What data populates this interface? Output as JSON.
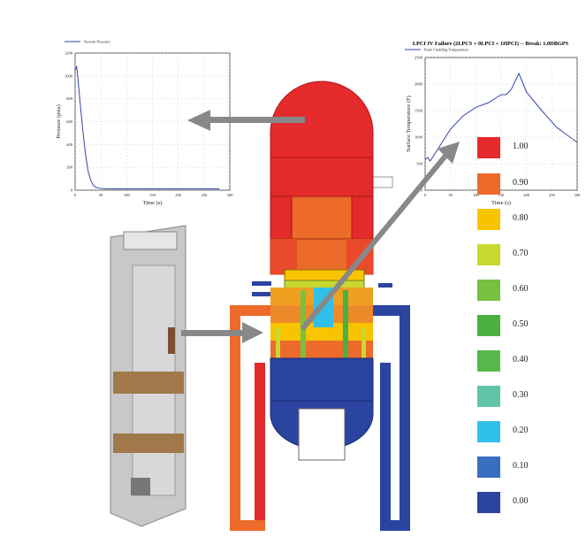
{
  "chart_data": [
    {
      "type": "line",
      "title": "",
      "xlabel": "Time   (s)",
      "ylabel": "Pressure   (psia)",
      "xlim": [
        0,
        300
      ],
      "ylim": [
        0,
        1200
      ],
      "x_ticks": [
        "0",
        "50",
        "100",
        "150",
        "200",
        "250",
        "300"
      ],
      "y_ticks": [
        "0",
        "200",
        "400",
        "600",
        "800",
        "1000",
        "1200"
      ],
      "grid": true,
      "legend_position": "top-left",
      "series": [
        {
          "name": "System Pressure",
          "color": "#3344aa",
          "x": [
            0,
            3,
            6,
            10,
            15,
            20,
            25,
            30,
            35,
            40,
            50,
            60,
            80,
            100,
            150,
            200,
            250,
            280
          ],
          "y": [
            1050,
            1080,
            950,
            750,
            520,
            320,
            170,
            90,
            45,
            25,
            15,
            12,
            12,
            12,
            12,
            12,
            12,
            12
          ]
        }
      ]
    },
    {
      "type": "line",
      "title": "LPCI IV Failure (2LPCS + 0LPCI + 1HPCI) -- Break: 1.0DBGPS",
      "xlabel": "Time   (s)",
      "ylabel": "Surface Temperature   (F)",
      "xlim": [
        0,
        300
      ],
      "ylim": [
        0,
        2500
      ],
      "x_ticks": [
        "0",
        "50",
        "100",
        "150",
        "200",
        "250",
        "300"
      ],
      "y_ticks": [
        "0",
        "500",
        "1000",
        "1500",
        "2000",
        "2500"
      ],
      "grid": true,
      "legend_position": "top",
      "series": [
        {
          "name": "Peak Cladding Temperature",
          "color": "#3344aa",
          "x": [
            0,
            5,
            10,
            20,
            30,
            50,
            75,
            100,
            125,
            150,
            160,
            170,
            185,
            200,
            230,
            260,
            300
          ],
          "y": [
            580,
            620,
            550,
            700,
            850,
            1150,
            1400,
            1560,
            1650,
            1800,
            1800,
            1900,
            2200,
            1850,
            1500,
            1180,
            900
          ]
        }
      ]
    }
  ],
  "legend": {
    "items": [
      {
        "label": "1.00",
        "color": "#e42a2a"
      },
      {
        "label": "0.90",
        "color": "#ec6a2a"
      },
      {
        "label": "0.80",
        "color": "#f8c400"
      },
      {
        "label": "0.70",
        "color": "#c9d830"
      },
      {
        "label": "0.60",
        "color": "#78c040"
      },
      {
        "label": "0.50",
        "color": "#4ab040"
      },
      {
        "label": "0.40",
        "color": "#56b84a"
      },
      {
        "label": "0.30",
        "color": "#60c4a8"
      },
      {
        "label": "0.20",
        "color": "#30c0e8"
      },
      {
        "label": "0.10",
        "color": "#3a6ec0"
      },
      {
        "label": "0.00",
        "color": "#2a44a0"
      }
    ]
  },
  "colors": {
    "hot": "#e42a2a",
    "warm": "#ec6a2a",
    "cold": "#2a44a0",
    "arrow": "#888888"
  }
}
